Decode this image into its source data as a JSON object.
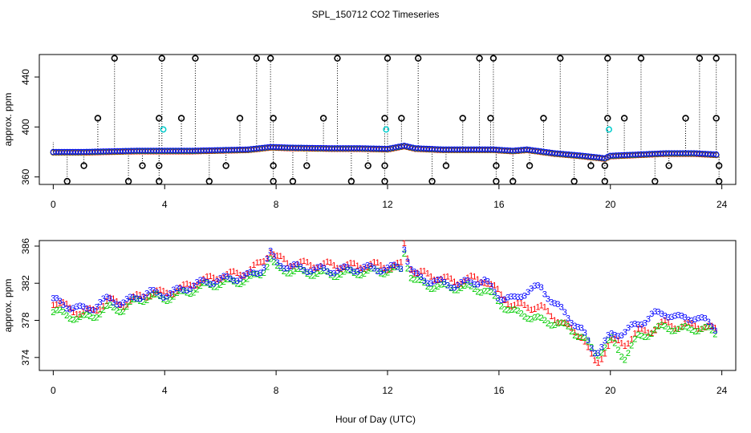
{
  "title": "SPL_150712  CO2 Timeseries",
  "xlabel": "Hour of Day (UTC)",
  "chart_data": [
    {
      "type": "scatter",
      "title": "",
      "xlabel": "",
      "ylabel": "approx. ppm",
      "xlim": [
        -0.5,
        24.5
      ],
      "ylim": [
        354,
        458
      ],
      "xticks": [
        0,
        4,
        8,
        12,
        16,
        20,
        24
      ],
      "yticks": [
        360,
        400,
        440
      ],
      "point_colors": {
        "1": "#ff0000",
        "2": "#00cc00",
        "3": "#0000ff",
        "cyan": "#00cccc",
        "flag": "#000000"
      },
      "main_trace": [
        [
          0,
          380
        ],
        [
          1,
          380
        ],
        [
          2,
          380.5
        ],
        [
          3,
          381
        ],
        [
          4,
          381
        ],
        [
          5,
          381
        ],
        [
          6,
          381.5
        ],
        [
          7,
          382
        ],
        [
          7.8,
          384
        ],
        [
          8.5,
          383.5
        ],
        [
          10,
          383
        ],
        [
          11,
          383
        ],
        [
          12,
          382.5
        ],
        [
          12.6,
          385
        ],
        [
          13,
          383
        ],
        [
          14,
          382
        ],
        [
          15,
          382
        ],
        [
          15.8,
          382
        ],
        [
          16.5,
          381
        ],
        [
          17,
          382
        ],
        [
          18,
          379
        ],
        [
          19,
          377
        ],
        [
          19.8,
          375
        ],
        [
          20,
          377
        ],
        [
          21,
          378
        ],
        [
          22,
          379
        ],
        [
          23,
          379
        ],
        [
          23.8,
          378
        ]
      ],
      "flags_high": [
        2.2,
        3.9,
        5.1,
        7.3,
        7.8,
        10.2,
        12.0,
        13.1,
        15.3,
        15.8,
        18.2,
        19.9,
        21.1,
        23.2,
        23.8
      ],
      "flags_low": [
        0.5,
        2.7,
        3.8,
        5.6,
        7.9,
        8.6,
        10.7,
        11.9,
        13.6,
        15.9,
        16.5,
        18.7,
        19.8,
        21.6,
        23.9
      ],
      "flags_400": [
        1.6,
        3.8,
        4.6,
        6.7,
        7.9,
        9.7,
        11.9,
        12.5,
        14.7,
        15.7,
        17.6,
        19.9,
        20.5,
        22.7,
        23.8
      ],
      "flags_370": [
        1.1,
        3.2,
        3.8,
        6.2,
        7.9,
        9.1,
        11.3,
        11.9,
        14.1,
        15.9,
        17.1,
        19.3,
        19.8,
        22.1,
        23.9
      ],
      "cyan_points": [
        [
          3.95,
          398
        ],
        [
          11.95,
          398
        ],
        [
          19.95,
          398
        ]
      ]
    },
    {
      "type": "scatter",
      "title": "",
      "xlabel": "",
      "ylabel": "approx. ppm",
      "xlim": [
        -0.5,
        24.5
      ],
      "ylim": [
        372.6,
        386.6
      ],
      "xticks": [
        0,
        4,
        8,
        12,
        16,
        20,
        24
      ],
      "yticks": [
        374,
        378,
        382,
        386
      ],
      "series": [
        {
          "label": "1",
          "color": "#ff0000",
          "values": [
            [
              0,
              380.0
            ],
            [
              0.5,
              379.5
            ],
            [
              1,
              378.8
            ],
            [
              1.5,
              379.2
            ],
            [
              2,
              380.2
            ],
            [
              2.5,
              379.8
            ],
            [
              3,
              380.5
            ],
            [
              3.5,
              381.0
            ],
            [
              4,
              381.0
            ],
            [
              4.5,
              381.3
            ],
            [
              5,
              382.0
            ],
            [
              5.5,
              382.4
            ],
            [
              6,
              382.8
            ],
            [
              6.5,
              383.0
            ],
            [
              7,
              383.3
            ],
            [
              7.5,
              384.3
            ],
            [
              7.8,
              385.6
            ],
            [
              8,
              384.8
            ],
            [
              8.5,
              384.2
            ],
            [
              9,
              384.1
            ],
            [
              9.5,
              384.0
            ],
            [
              10,
              384.0
            ],
            [
              10.5,
              383.9
            ],
            [
              11,
              383.9
            ],
            [
              11.5,
              384.0
            ],
            [
              12,
              383.8
            ],
            [
              12.5,
              384.0
            ],
            [
              12.6,
              386.2
            ],
            [
              12.8,
              384.0
            ],
            [
              13,
              383.2
            ],
            [
              13.5,
              382.9
            ],
            [
              14,
              382.5
            ],
            [
              14.5,
              382.2
            ],
            [
              15,
              382.5
            ],
            [
              15.5,
              382.4
            ],
            [
              16,
              381.0
            ],
            [
              16.5,
              379.6
            ],
            [
              17,
              379.6
            ],
            [
              17.5,
              379.4
            ],
            [
              18,
              378.4
            ],
            [
              18.5,
              377.2
            ],
            [
              19,
              376.4
            ],
            [
              19.3,
              374.2
            ],
            [
              19.5,
              373.2
            ],
            [
              19.8,
              374.8
            ],
            [
              20,
              375.8
            ],
            [
              20.5,
              375.5
            ],
            [
              21,
              376.8
            ],
            [
              21.5,
              377.0
            ],
            [
              22,
              377.8
            ],
            [
              22.5,
              377.3
            ],
            [
              23,
              377.6
            ],
            [
              23.5,
              377.2
            ],
            [
              23.8,
              377.0
            ]
          ]
        },
        {
          "label": "2",
          "color": "#00cc00",
          "values": [
            [
              0,
              379.0
            ],
            [
              0.5,
              378.6
            ],
            [
              1,
              378.2
            ],
            [
              1.5,
              378.6
            ],
            [
              2,
              379.4
            ],
            [
              2.5,
              379.2
            ],
            [
              3,
              380.2
            ],
            [
              3.5,
              380.6
            ],
            [
              4,
              380.4
            ],
            [
              4.5,
              380.8
            ],
            [
              5,
              381.3
            ],
            [
              5.5,
              381.8
            ],
            [
              6,
              382.0
            ],
            [
              6.5,
              382.2
            ],
            [
              7,
              382.4
            ],
            [
              7.5,
              383.2
            ],
            [
              7.8,
              384.6
            ],
            [
              8,
              383.6
            ],
            [
              8.5,
              383.4
            ],
            [
              9,
              383.2
            ],
            [
              9.5,
              383.1
            ],
            [
              10,
              383.0
            ],
            [
              10.5,
              383.1
            ],
            [
              11,
              383.2
            ],
            [
              11.5,
              383.3
            ],
            [
              12,
              383.4
            ],
            [
              12.5,
              383.5
            ],
            [
              12.6,
              385.4
            ],
            [
              12.8,
              383.0
            ],
            [
              13,
              382.2
            ],
            [
              13.5,
              381.8
            ],
            [
              14,
              381.6
            ],
            [
              14.5,
              381.6
            ],
            [
              15,
              381.5
            ],
            [
              15.5,
              381.3
            ],
            [
              16,
              380.0
            ],
            [
              16.5,
              378.9
            ],
            [
              17,
              378.6
            ],
            [
              17.5,
              378.0
            ],
            [
              18,
              377.8
            ],
            [
              18.5,
              377.2
            ],
            [
              19,
              376.2
            ],
            [
              19.3,
              375.0
            ],
            [
              19.5,
              374.4
            ],
            [
              19.8,
              375.2
            ],
            [
              20,
              376.0
            ],
            [
              20.5,
              374.0
            ],
            [
              21,
              376.2
            ],
            [
              21.5,
              376.8
            ],
            [
              22,
              377.4
            ],
            [
              22.5,
              377.0
            ],
            [
              23,
              377.2
            ],
            [
              23.5,
              377.0
            ],
            [
              23.8,
              376.6
            ]
          ]
        },
        {
          "label": "3",
          "color": "#0000ff",
          "values": [
            [
              0,
              380.2
            ],
            [
              0.5,
              379.6
            ],
            [
              1,
              379.2
            ],
            [
              1.5,
              379.5
            ],
            [
              2,
              380.4
            ],
            [
              2.5,
              379.8
            ],
            [
              3,
              380.6
            ],
            [
              3.5,
              381.0
            ],
            [
              4,
              380.8
            ],
            [
              4.5,
              381.2
            ],
            [
              5,
              381.8
            ],
            [
              5.5,
              382.2
            ],
            [
              6,
              382.4
            ],
            [
              6.5,
              382.6
            ],
            [
              7,
              382.8
            ],
            [
              7.5,
              383.6
            ],
            [
              7.8,
              385.2
            ],
            [
              8,
              384.2
            ],
            [
              8.5,
              383.8
            ],
            [
              9,
              383.6
            ],
            [
              9.5,
              383.5
            ],
            [
              10,
              383.4
            ],
            [
              10.5,
              383.5
            ],
            [
              11,
              383.6
            ],
            [
              11.5,
              383.6
            ],
            [
              12,
              383.6
            ],
            [
              12.5,
              383.8
            ],
            [
              12.6,
              386.0
            ],
            [
              12.8,
              383.6
            ],
            [
              13,
              382.8
            ],
            [
              13.5,
              382.3
            ],
            [
              14,
              382.0
            ],
            [
              14.5,
              381.8
            ],
            [
              15,
              382.2
            ],
            [
              15.5,
              382.2
            ],
            [
              16,
              380.6
            ],
            [
              16.5,
              380.2
            ],
            [
              17,
              381.2
            ],
            [
              17.5,
              381.6
            ],
            [
              18,
              379.8
            ],
            [
              18.5,
              378.4
            ],
            [
              19,
              376.8
            ],
            [
              19.3,
              375.2
            ],
            [
              19.5,
              374.6
            ],
            [
              19.8,
              375.6
            ],
            [
              20,
              376.4
            ],
            [
              20.5,
              376.8
            ],
            [
              21,
              377.6
            ],
            [
              21.5,
              378.6
            ],
            [
              22,
              378.8
            ],
            [
              22.5,
              378.2
            ],
            [
              23,
              378.4
            ],
            [
              23.5,
              377.8
            ],
            [
              23.8,
              377.2
            ]
          ]
        }
      ]
    }
  ]
}
